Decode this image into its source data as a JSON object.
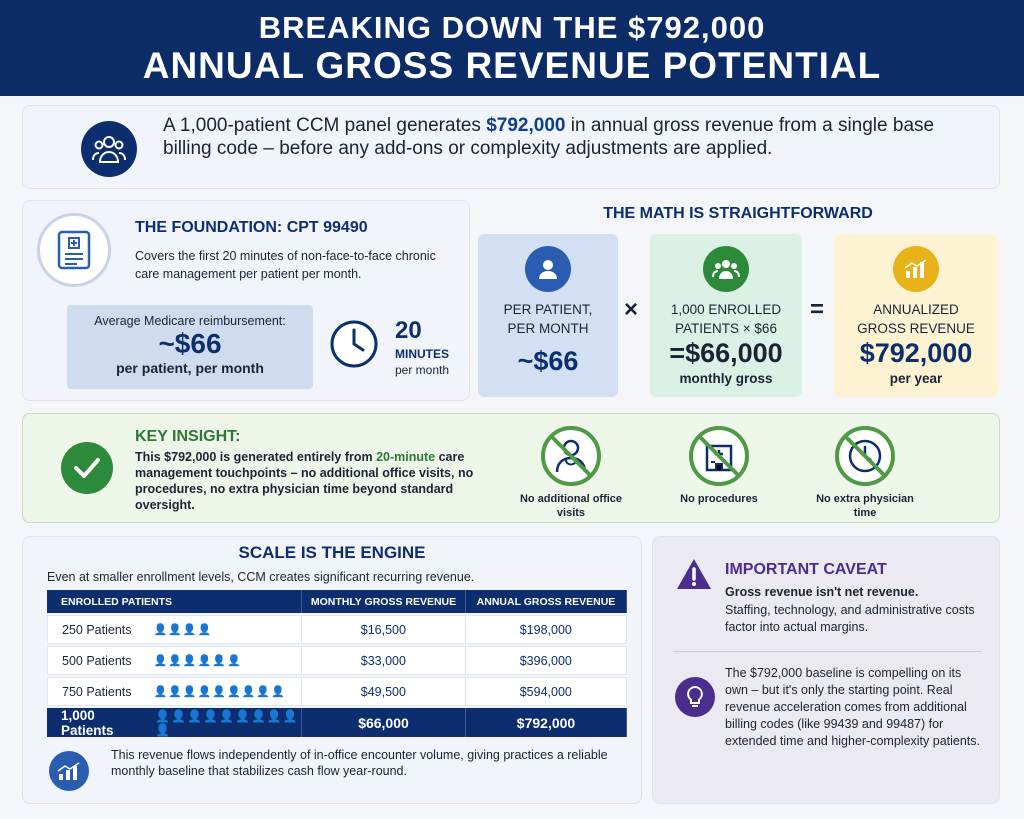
{
  "header": {
    "line1": "BREAKING DOWN THE $792,000",
    "line2": "ANNUAL GROSS REVENUE POTENTIAL"
  },
  "intro": {
    "pre": "A 1,000-patient CCM panel generates ",
    "highlight": "$792,000",
    "post": " in annual gross revenue from a single base billing code – before any add-ons or complexity adjustments are applied."
  },
  "foundation": {
    "title": "THE FOUNDATION: CPT 99490",
    "description": "Covers the first 20 minutes of non-face-to-face chronic care management per patient per month.",
    "reimb_label": "Average Medicare reimbursement:",
    "reimb_value": "~$66",
    "reimb_unit": "per patient, per month",
    "minutes_value": "20",
    "minutes_label": "MINUTES",
    "minutes_unit": "per month"
  },
  "math": {
    "title": "THE MATH IS STRAIGHTFORWARD",
    "box1_label": "PER PATIENT, PER MONTH",
    "box1_value": "~$66",
    "op1": "×",
    "box2_label": "1,000 ENROLLED PATIENTS × $66",
    "box2_value": "=$66,000",
    "box2_unit": "monthly gross",
    "op2": "=",
    "box3_label": "ANNUALIZED GROSS REVENUE",
    "box3_value": "$792,000",
    "box3_unit": "per year"
  },
  "insight": {
    "title": "KEY INSIGHT:",
    "pre": "This $792,000 is generated entirely from ",
    "highlight": "20-minute",
    "post": " care management touchpoints – no additional office visits, no procedures, no extra physician time beyond standard oversight.",
    "items": [
      {
        "label": "No additional office visits",
        "icon": "no-doctor-icon"
      },
      {
        "label": "No procedures",
        "icon": "no-hospital-icon"
      },
      {
        "label": "No extra physician time",
        "icon": "no-clock-icon"
      }
    ]
  },
  "scale": {
    "title": "SCALE IS THE ENGINE",
    "subtitle": "Even at smaller enrollment levels, CCM creates significant recurring revenue.",
    "headers": [
      "ENROLLED PATIENTS",
      "MONTHLY GROSS REVENUE",
      "ANNUAL GROSS REVENUE"
    ],
    "rows": [
      {
        "patients": "250 Patients",
        "monthly": "$16,500",
        "annual": "$198,000",
        "people": "👤👤👤👤"
      },
      {
        "patients": "500 Patients",
        "monthly": "$33,000",
        "annual": "$396,000",
        "people": "👤👤👤👤👤👤"
      },
      {
        "patients": "750 Patients",
        "monthly": "$49,500",
        "annual": "$594,000",
        "people": "👤👤👤👤👤👤👤👤👤"
      }
    ],
    "total": {
      "patients": "1,000 Patients",
      "monthly": "$66,000",
      "annual": "$792,000",
      "people": "👤👤👤👤👤👤👤👤👤👤"
    },
    "footnote": "This revenue flows independently of in-office encounter volume, giving practices a reliable monthly baseline that stabilizes cash flow year-round."
  },
  "caveat": {
    "title": "IMPORTANT CAVEAT",
    "bold": "Gross revenue isn't net revenue.",
    "text": "Staffing, technology, and administrative costs factor into actual margins.",
    "text2": "The $792,000 baseline is compelling on its own – but it's only the starting point. Real revenue acceleration comes from additional billing codes (like 99439 and 99487) for extended time and higher-complexity patients."
  },
  "colors": {
    "navy": "#0c2c68",
    "green": "#2d8a3a",
    "purple": "#4a2d8c",
    "gold": "#e7b21a"
  }
}
